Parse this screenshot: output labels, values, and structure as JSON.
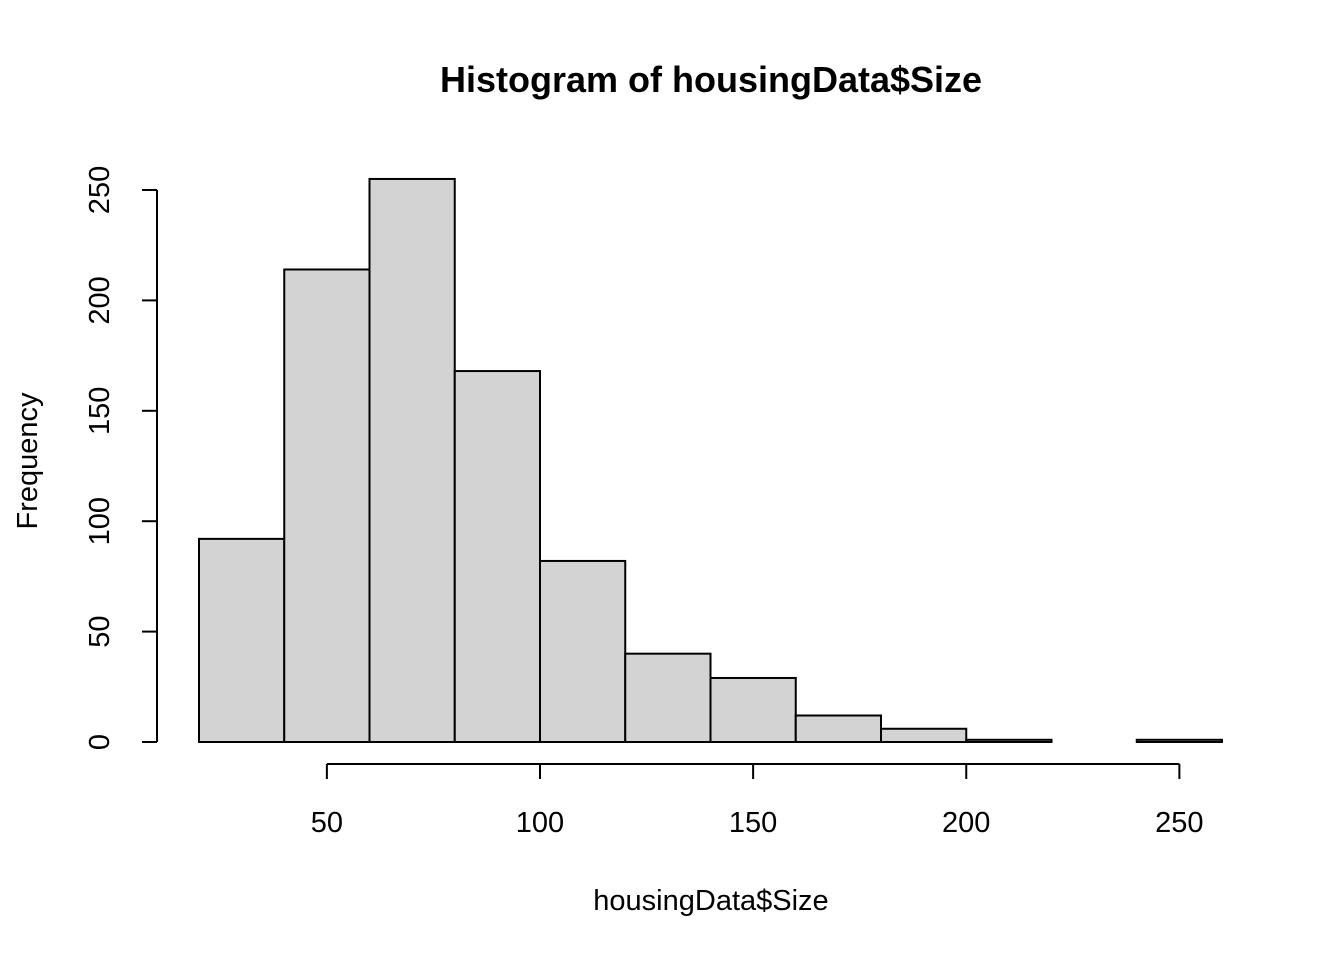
{
  "chart_data": {
    "type": "bar",
    "title": "Histogram of housingData$Size",
    "xlabel": "housingData$Size",
    "ylabel": "Frequency",
    "bins": [
      {
        "from": 20,
        "to": 40,
        "count": 92
      },
      {
        "from": 40,
        "to": 60,
        "count": 214
      },
      {
        "from": 60,
        "to": 80,
        "count": 255
      },
      {
        "from": 80,
        "to": 100,
        "count": 168
      },
      {
        "from": 100,
        "to": 120,
        "count": 82
      },
      {
        "from": 120,
        "to": 140,
        "count": 40
      },
      {
        "from": 140,
        "to": 160,
        "count": 29
      },
      {
        "from": 160,
        "to": 180,
        "count": 12
      },
      {
        "from": 180,
        "to": 200,
        "count": 6
      },
      {
        "from": 200,
        "to": 220,
        "count": 1
      },
      {
        "from": 220,
        "to": 240,
        "count": 0
      },
      {
        "from": 240,
        "to": 260,
        "count": 1
      }
    ],
    "xlim": [
      20,
      260
    ],
    "ylim": [
      0,
      255
    ],
    "x_ticks": [
      50,
      100,
      150,
      200,
      250
    ],
    "y_ticks": [
      0,
      50,
      100,
      150,
      200,
      250
    ],
    "bar_fill": "#d3d3d3",
    "bar_stroke": "#000000",
    "grid": false,
    "legend": "none"
  }
}
